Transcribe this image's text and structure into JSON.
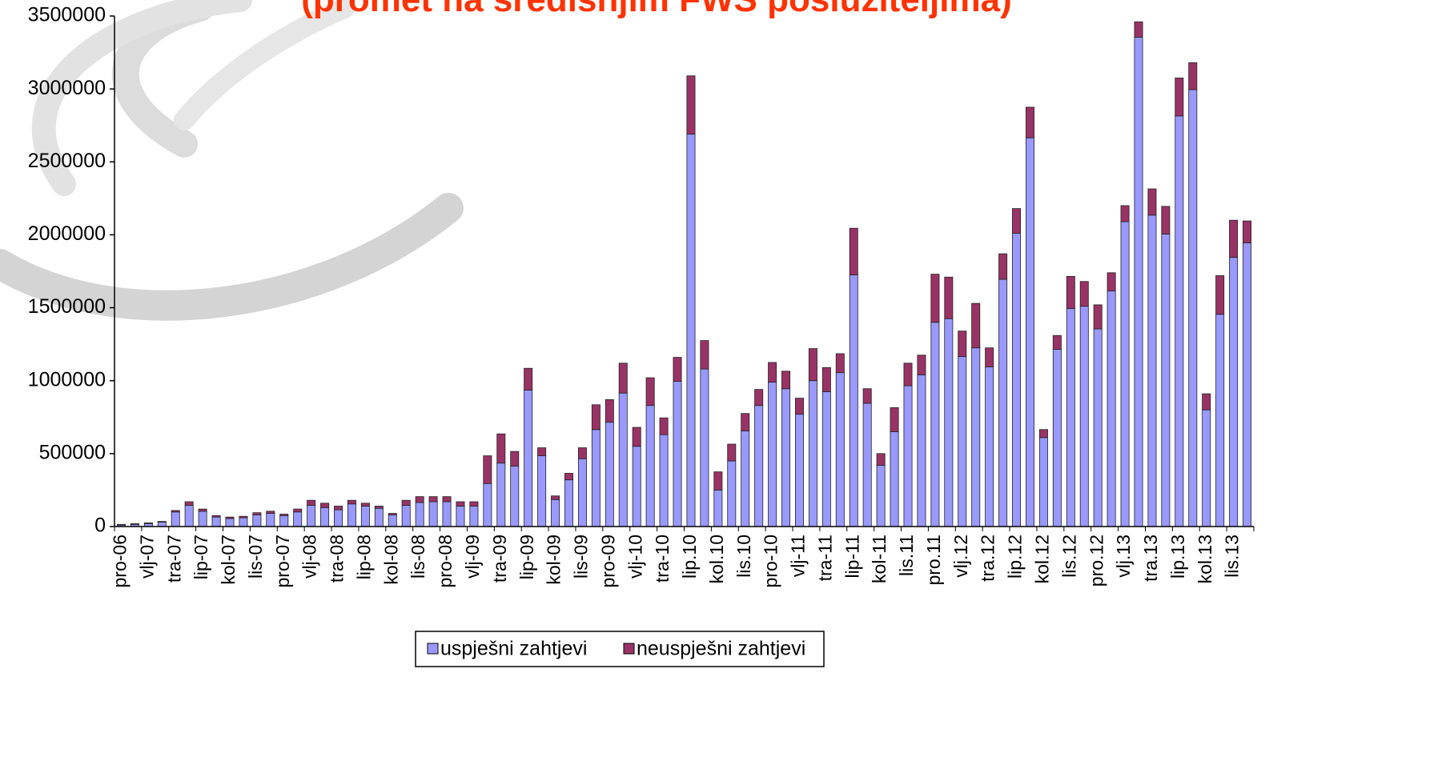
{
  "chart_data": {
    "type": "stacked_bar",
    "title": "(promet na središnjim FWS poslužiteljima)",
    "categories": [
      "pro-06",
      null,
      "vlj-07",
      null,
      "tra-07",
      null,
      "lip-07",
      null,
      "kol-07",
      null,
      "lis-07",
      null,
      "pro-07",
      null,
      "vlj-08",
      null,
      "tra-08",
      null,
      "lip-08",
      null,
      "kol-08",
      null,
      "lis-08",
      null,
      "pro-08",
      null,
      "vlj-09",
      null,
      "tra-09",
      null,
      "lip-09",
      null,
      "kol-09",
      null,
      "lis-09",
      null,
      "pro-09",
      null,
      "vlj-10",
      null,
      "tra-10",
      null,
      "lip.10",
      null,
      "kol.10",
      null,
      "lis.10",
      null,
      "pro-10",
      null,
      "vlj-11",
      null,
      "tra-11",
      null,
      "lip-11",
      null,
      "kol-11",
      null,
      "lis.11",
      null,
      "pro.11",
      null,
      "vlj.12",
      null,
      "tra.12",
      null,
      "lip.12",
      null,
      "kol.12",
      null,
      "lis.12",
      null,
      "pro.12",
      null,
      "vlj.13",
      null,
      "tra.13",
      null,
      "lip.13",
      null,
      "kol.13",
      null,
      "lis.13",
      null
    ],
    "series": [
      {
        "name": "uspješni zahtjevi",
        "color": "#9999ff",
        "values": [
          10000,
          15000,
          20000,
          30000,
          100000,
          145000,
          105000,
          65000,
          55000,
          60000,
          80000,
          90000,
          75000,
          100000,
          145000,
          130000,
          115000,
          155000,
          140000,
          125000,
          80000,
          145000,
          165000,
          170000,
          170000,
          140000,
          140000,
          295000,
          435000,
          415000,
          935000,
          485000,
          185000,
          320000,
          465000,
          665000,
          715000,
          915000,
          550000,
          830000,
          630000,
          995000,
          2690000,
          1080000,
          250000,
          450000,
          655000,
          830000,
          990000,
          945000,
          770000,
          1000000,
          925000,
          1055000,
          1725000,
          845000,
          420000,
          650000,
          965000,
          1040000,
          1400000,
          1425000,
          1165000,
          1225000,
          1095000,
          1695000,
          2010000,
          2665000,
          610000,
          1215000,
          1495000,
          1510000,
          1355000,
          1615000,
          2090000,
          3355000,
          2135000,
          2005000,
          2815000,
          2995000,
          800000,
          1455000,
          1845000,
          1945000
        ]
      },
      {
        "name": "neuspješni zahtjevi",
        "color": "#993366",
        "values": [
          5000,
          5000,
          5000,
          5000,
          10000,
          25000,
          15000,
          10000,
          10000,
          10000,
          15000,
          15000,
          10000,
          20000,
          35000,
          30000,
          25000,
          25000,
          20000,
          15000,
          10000,
          35000,
          40000,
          35000,
          35000,
          30000,
          30000,
          190000,
          200000,
          100000,
          150000,
          55000,
          25000,
          45000,
          75000,
          170000,
          155000,
          205000,
          130000,
          190000,
          115000,
          165000,
          400000,
          195000,
          125000,
          115000,
          120000,
          110000,
          135000,
          120000,
          110000,
          220000,
          165000,
          130000,
          320000,
          100000,
          80000,
          165000,
          155000,
          135000,
          330000,
          285000,
          175000,
          305000,
          130000,
          175000,
          170000,
          210000,
          55000,
          95000,
          220000,
          170000,
          165000,
          125000,
          110000,
          105000,
          180000,
          190000,
          260000,
          185000,
          110000,
          265000,
          255000,
          150000
        ]
      }
    ],
    "ylim": [
      0,
      3500000
    ],
    "yticks": [
      0,
      500000,
      1000000,
      1500000,
      2000000,
      2500000,
      3000000,
      3500000
    ],
    "legend": "bottom"
  }
}
